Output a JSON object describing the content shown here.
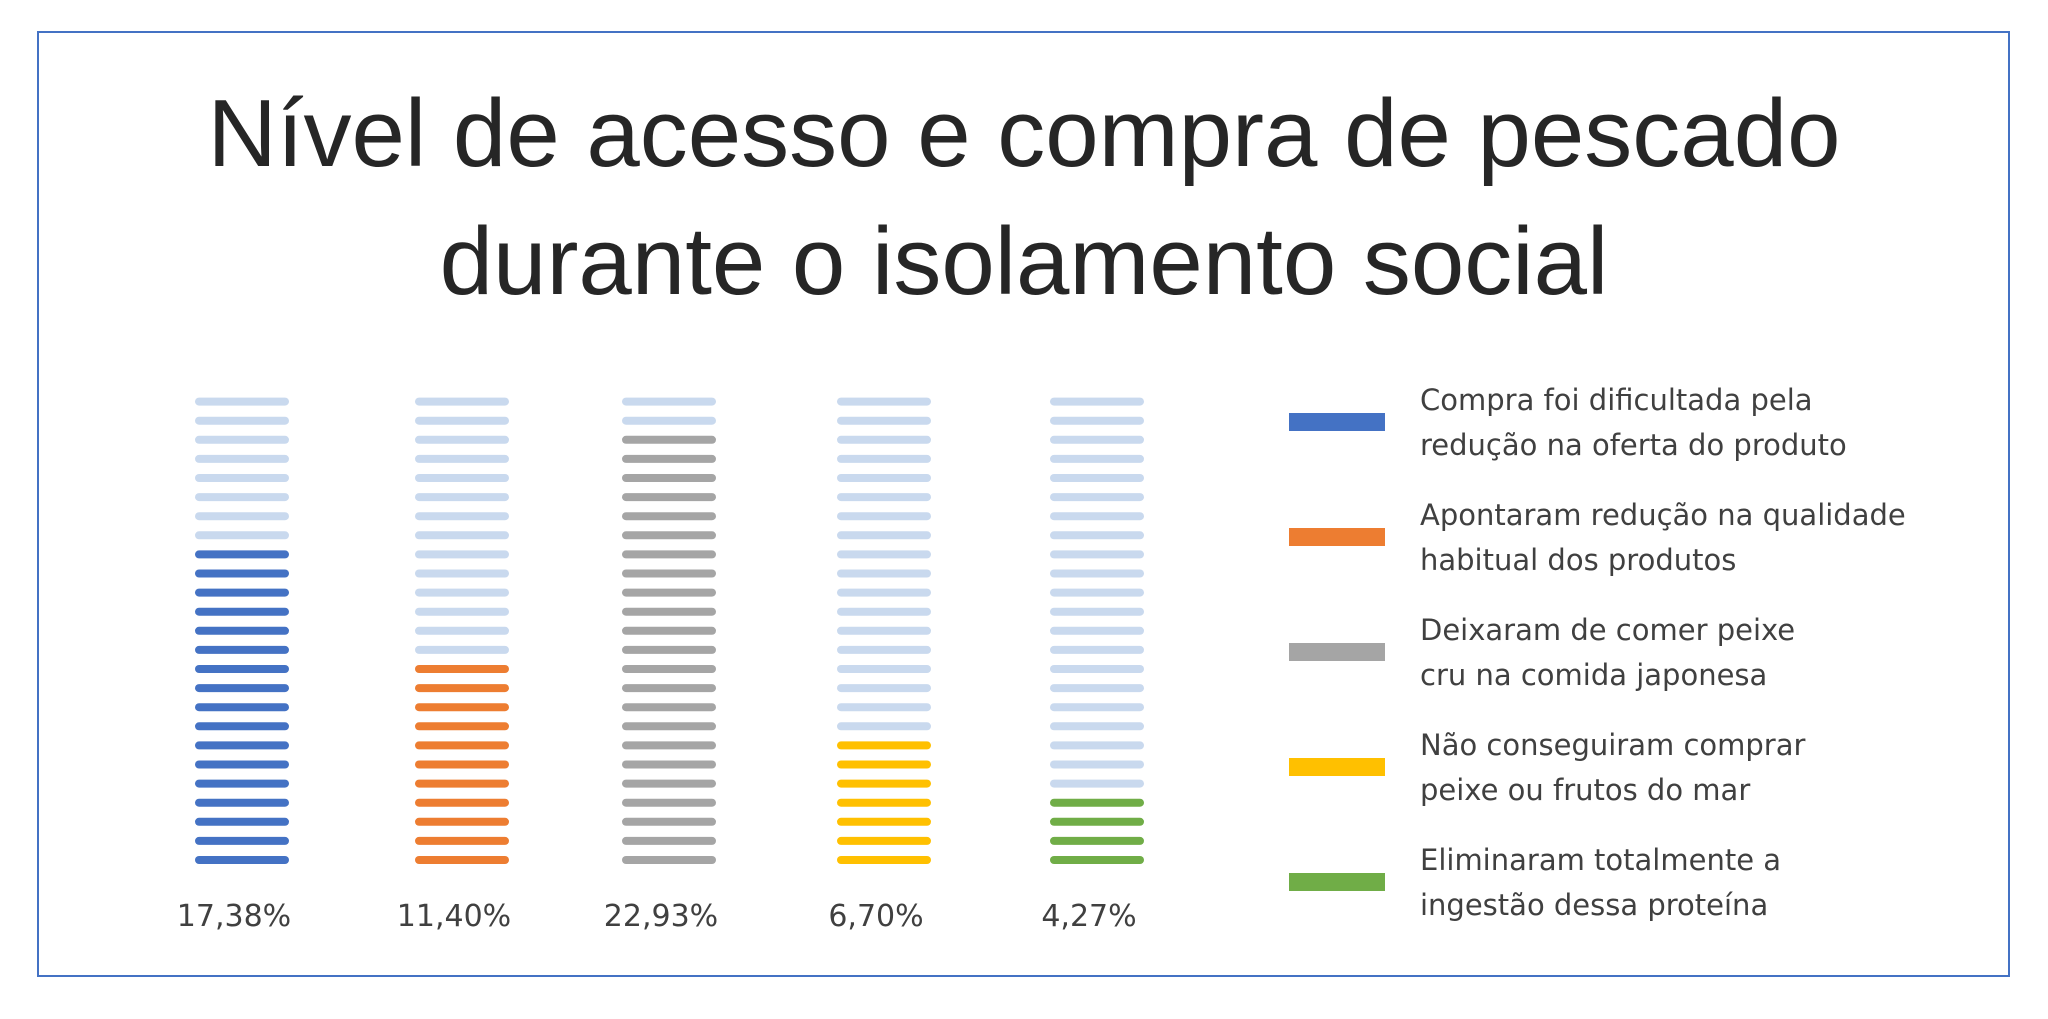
{
  "chart_data": {
    "type": "bar",
    "title_lines": [
      "Nível de acesso e compra de pescado",
      "durante o isolamento social"
    ],
    "categories": [
      "Compra foi dificultada pela redução na oferta do produto",
      "Apontaram redução na qualidade habitual dos produtos",
      "Deixaram de comer peixe cru na comida japonesa",
      "Não conseguiram comprar peixe ou frutos do mar",
      "Eliminaram totalmente a ingestão dessa proteína"
    ],
    "values": [
      17.38,
      11.4,
      22.93,
      6.7,
      4.27
    ],
    "value_labels": [
      "17,38%",
      "11,40%",
      "22,93%",
      "6,70%",
      "4,27%"
    ],
    "unit": "%",
    "scale_max": 25,
    "colors": [
      "#4472c4",
      "#ed7d31",
      "#a5a5a5",
      "#ffc000",
      "#70ad47"
    ],
    "track_color": "#c9d9ee",
    "legend": {
      "position": "right",
      "entries": [
        {
          "lines": [
            "Compra foi dificultada pela",
            "redução na oferta do produto"
          ],
          "color": "#4472c4"
        },
        {
          "lines": [
            "Apontaram redução na qualidade",
            "habitual dos produtos"
          ],
          "color": "#ed7d31"
        },
        {
          "lines": [
            "Deixaram de comer peixe",
            "cru na comida japonesa"
          ],
          "color": "#a5a5a5"
        },
        {
          "lines": [
            "Não conseguiram comprar",
            "peixe ou frutos do mar"
          ],
          "color": "#ffc000"
        },
        {
          "lines": [
            "Eliminaram totalmente a",
            "ingestão dessa proteína"
          ],
          "color": "#70ad47"
        }
      ]
    },
    "grid": false
  }
}
